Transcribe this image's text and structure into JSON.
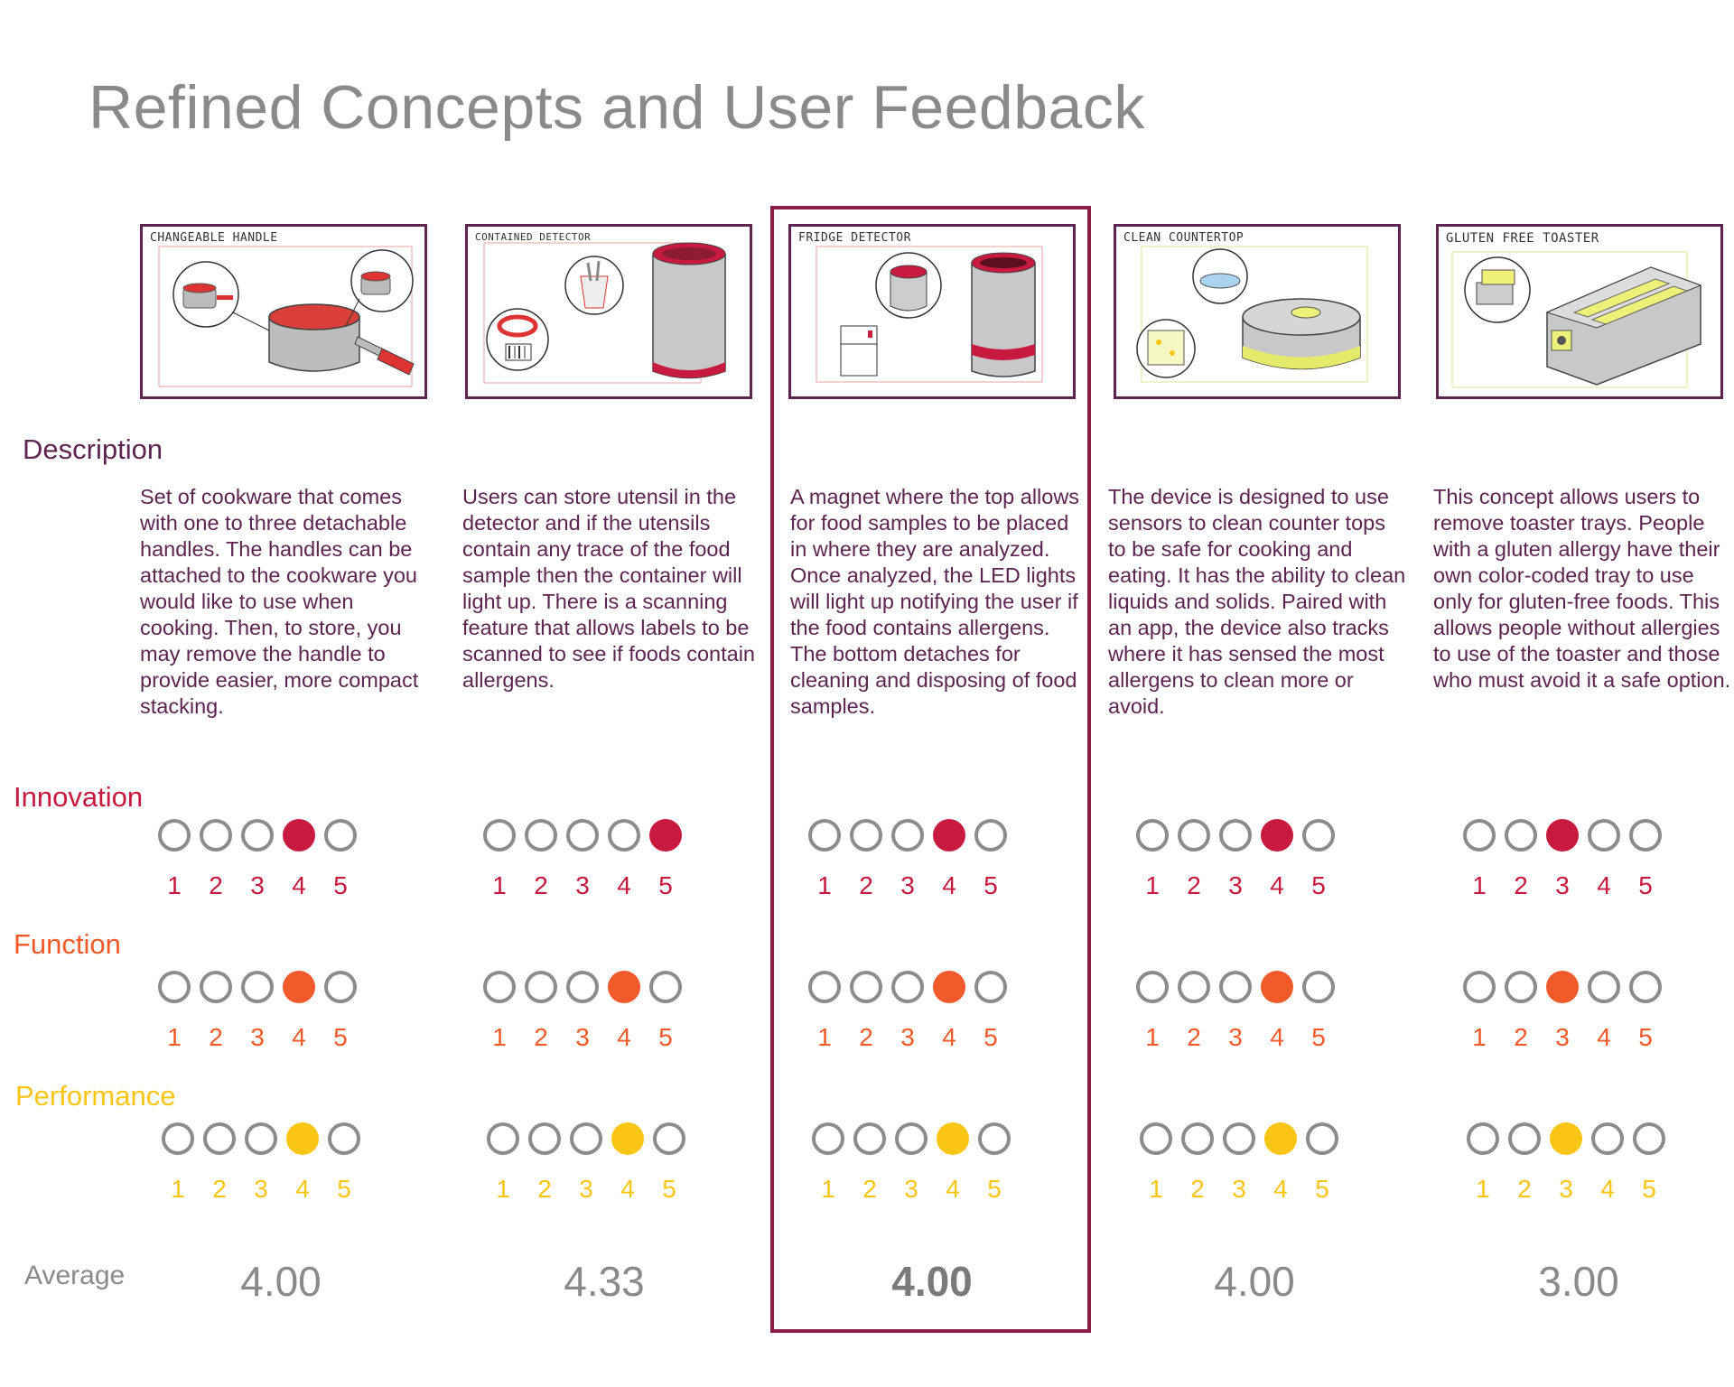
{
  "page": {
    "title": "Refined Concepts and User Feedback"
  },
  "sections": {
    "description": "Description",
    "innovation": "Innovation",
    "function": "Function",
    "performance": "Performance",
    "average": "Average"
  },
  "colors": {
    "innovation": "#c8193f",
    "function": "#f25a2a",
    "performance": "#fbc515",
    "description": "#5d2452",
    "empty_dot": "#8c8c8c",
    "highlight": "#8c1c44"
  },
  "scale": [
    "1",
    "2",
    "3",
    "4",
    "5"
  ],
  "concepts": [
    {
      "name": "CHANGEABLE HANDLE",
      "description": "Set of cookware that comes with one to three detachable handles. The handles can be attached to the cookware you would like to use when cooking. Then, to store, you may remove the handle to provide easier, more compact stacking.",
      "innovation": 4,
      "function": 4,
      "performance": 4,
      "average": "4.00",
      "highlighted": false
    },
    {
      "name": "CONTAINED DETECTOR",
      "description": "Users can store utensil in the detector and if the utensils contain any trace of the food sample then the container will light up. There is a scanning feature that allows labels to be scanned to see if foods contain allergens.",
      "innovation": 5,
      "function": 4,
      "performance": 4,
      "average": "4.33",
      "highlighted": false
    },
    {
      "name": "FRIDGE DETECTOR",
      "description": "A magnet where the top allows for food samples to be placed in where they are analyzed. Once analyzed, the LED lights will light up notifying the user if the food contains allergens. The bottom detaches for cleaning and disposing of food samples.",
      "innovation": 4,
      "function": 4,
      "performance": 4,
      "average": "4.00",
      "highlighted": true
    },
    {
      "name": "CLEAN COUNTERTOP",
      "description": "The device is designed to use sensors to clean counter tops to be safe for cooking and eating. It has the ability to clean liquids and solids. Paired with an app, the device also tracks where it has sensed the most allergens to clean more or avoid.",
      "innovation": 4,
      "function": 4,
      "performance": 4,
      "average": "4.00",
      "highlighted": false
    },
    {
      "name": "GLUTEN FREE TOASTER",
      "description": "This concept allows users to remove toaster trays. People with a gluten allergy have their own color-coded tray to use only for gluten-free foods. This allows people without allergies to use of the toaster and those who must avoid it a safe option.",
      "innovation": 3,
      "function": 3,
      "performance": 3,
      "average": "3.00",
      "highlighted": false
    }
  ]
}
